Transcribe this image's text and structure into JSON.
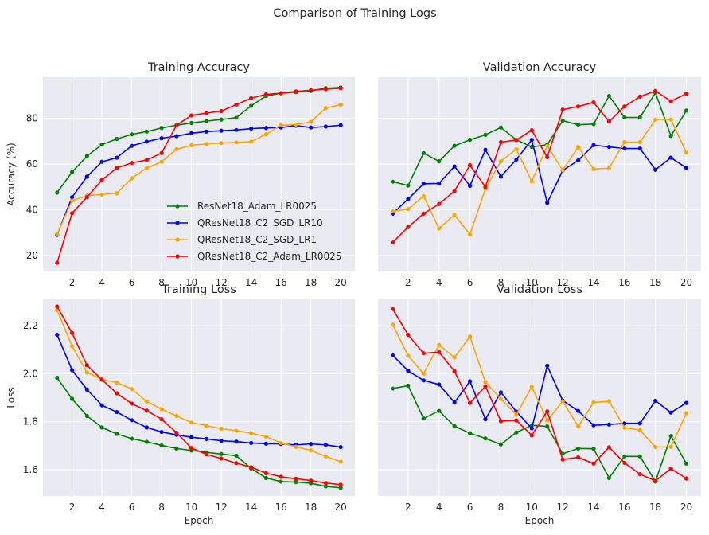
{
  "suptitle": "Comparison of Training Logs",
  "colors": {
    "background": "#eaeaf2",
    "grid": "#ffffff",
    "series": [
      "#008000",
      "#0000ff",
      "#ffa500",
      "#ff0000"
    ]
  },
  "legend": {
    "location": "lower-right of Training Accuracy",
    "entries": [
      "ResNet18_Adam_LR0025",
      "QResNet18_C2_SGD_LR10",
      "QResNet18_C2_SGD_LR1",
      "QResNet18_C2_Adam_LR0025"
    ]
  },
  "chart_data": [
    {
      "type": "line",
      "title": "Training Accuracy",
      "xlabel": "",
      "ylabel": "Accuracy (%)",
      "x": [
        1,
        2,
        3,
        4,
        5,
        6,
        7,
        8,
        9,
        10,
        11,
        12,
        13,
        14,
        15,
        16,
        17,
        18,
        19,
        20
      ],
      "xticks": [
        2,
        4,
        6,
        8,
        10,
        12,
        14,
        16,
        18,
        20
      ],
      "xlim": [
        0.05,
        20.95
      ],
      "yticks": [
        20,
        40,
        60,
        80
      ],
      "ylim": [
        13,
        98
      ],
      "series": [
        {
          "name": "ResNet18_Adam_LR0025",
          "values": [
            47.5,
            56.5,
            63.5,
            68.5,
            71,
            73,
            74.2,
            75.8,
            77,
            78,
            78.8,
            79.5,
            80.3,
            85.5,
            89.8,
            91,
            91.5,
            92,
            93.2,
            93.5
          ]
        },
        {
          "name": "QResNet18_C2_SGD_LR10",
          "values": [
            29,
            45.5,
            54.5,
            61,
            62.8,
            68,
            69.8,
            71.3,
            72.2,
            73.5,
            74.2,
            74.6,
            74.9,
            75.5,
            75.8,
            76,
            76.8,
            76,
            76.4,
            77
          ]
        },
        {
          "name": "QResNet18_C2_SGD_LR1",
          "values": [
            29.3,
            44,
            46.2,
            46.7,
            47.2,
            53.8,
            58.3,
            61,
            66.5,
            68.2,
            68.8,
            69.2,
            69.5,
            69.8,
            73,
            77,
            77.3,
            78.5,
            84.5,
            86
          ]
        },
        {
          "name": "QResNet18_C2_Adam_LR0025",
          "values": [
            16.8,
            38.5,
            45.5,
            53,
            58.3,
            60.5,
            61.8,
            64.8,
            77,
            81.3,
            82.3,
            83.2,
            86,
            88.8,
            90.5,
            91,
            91.8,
            92.3,
            92.8,
            93.2
          ]
        }
      ]
    },
    {
      "type": "line",
      "title": "Validation Accuracy",
      "xlabel": "",
      "ylabel": "",
      "x": [
        1,
        2,
        3,
        4,
        5,
        6,
        7,
        8,
        9,
        10,
        11,
        12,
        13,
        14,
        15,
        16,
        17,
        18,
        19,
        20
      ],
      "xticks": [
        2,
        4,
        6,
        8,
        10,
        12,
        14,
        16,
        18,
        20
      ],
      "xlim": [
        0.05,
        20.95
      ],
      "yticks": [
        20,
        40,
        60,
        80
      ],
      "ylim": [
        13,
        98
      ],
      "series": [
        {
          "name": "ResNet18_Adam_LR0025",
          "values": [
            52.3,
            50.6,
            64.8,
            61.2,
            68,
            70.6,
            72.8,
            76,
            70.6,
            67.5,
            68.5,
            79,
            77.2,
            77.5,
            89.8,
            80.4,
            80.4,
            91.2,
            72.3,
            83.4
          ]
        },
        {
          "name": "QResNet18_C2_SGD_LR10",
          "values": [
            38.3,
            44.7,
            51.4,
            51.5,
            59,
            50.5,
            66.2,
            54.5,
            62,
            70.6,
            43,
            57.2,
            61.6,
            68.3,
            67.5,
            66.8,
            66.8,
            57.5,
            62.8,
            58.3
          ]
        },
        {
          "name": "QResNet18_C2_SGD_LR1",
          "values": [
            39.3,
            40.3,
            46,
            31.8,
            37.8,
            29.2,
            49.2,
            61.3,
            66.5,
            52.4,
            68,
            57.3,
            67.5,
            57.8,
            58.2,
            69.6,
            69.6,
            79.5,
            79.5,
            65
          ]
        },
        {
          "name": "QResNet18_C2_Adam_LR0025",
          "values": [
            25.7,
            32.4,
            38.3,
            42.5,
            48.2,
            59.5,
            50,
            69.6,
            70.5,
            74.8,
            63,
            83.8,
            85.2,
            87,
            78.6,
            85.2,
            89.5,
            92,
            87.5,
            90.8
          ]
        }
      ]
    },
    {
      "type": "line",
      "title": "Training Loss",
      "xlabel": "Epoch",
      "ylabel": "Loss",
      "x": [
        1,
        2,
        3,
        4,
        5,
        6,
        7,
        8,
        9,
        10,
        11,
        12,
        13,
        14,
        15,
        16,
        17,
        18,
        19,
        20
      ],
      "xticks": [
        2,
        4,
        6,
        8,
        10,
        12,
        14,
        16,
        18,
        20
      ],
      "xlim": [
        0.05,
        20.95
      ],
      "yticks": [
        1.6,
        1.8,
        2.0,
        2.2
      ],
      "ylim": [
        1.49,
        2.31
      ],
      "series": [
        {
          "name": "ResNet18_Adam_LR0025",
          "values": [
            1.983,
            1.895,
            1.824,
            1.776,
            1.749,
            1.729,
            1.716,
            1.701,
            1.688,
            1.68,
            1.672,
            1.665,
            1.658,
            1.605,
            1.565,
            1.55,
            1.548,
            1.543,
            1.53,
            1.524
          ]
        },
        {
          "name": "QResNet18_C2_SGD_LR10",
          "values": [
            2.162,
            2.015,
            1.934,
            1.868,
            1.84,
            1.806,
            1.776,
            1.757,
            1.745,
            1.735,
            1.728,
            1.72,
            1.717,
            1.711,
            1.708,
            1.707,
            1.703,
            1.707,
            1.703,
            1.694
          ]
        },
        {
          "name": "QResNet18_C2_SGD_LR1",
          "values": [
            2.265,
            2.115,
            2.005,
            1.976,
            1.963,
            1.936,
            1.884,
            1.852,
            1.824,
            1.796,
            1.783,
            1.771,
            1.762,
            1.752,
            1.738,
            1.711,
            1.695,
            1.68,
            1.655,
            1.633
          ]
        },
        {
          "name": "QResNet18_C2_Adam_LR0025",
          "values": [
            2.28,
            2.17,
            2.035,
            1.975,
            1.918,
            1.875,
            1.846,
            1.81,
            1.754,
            1.69,
            1.664,
            1.646,
            1.627,
            1.61,
            1.585,
            1.57,
            1.562,
            1.554,
            1.544,
            1.537
          ]
        }
      ]
    },
    {
      "type": "line",
      "title": "Validation Loss",
      "xlabel": "Epoch",
      "ylabel": "",
      "x": [
        1,
        2,
        3,
        4,
        5,
        6,
        7,
        8,
        9,
        10,
        11,
        12,
        13,
        14,
        15,
        16,
        17,
        18,
        19,
        20
      ],
      "xticks": [
        2,
        4,
        6,
        8,
        10,
        12,
        14,
        16,
        18,
        20
      ],
      "xlim": [
        0.05,
        20.95
      ],
      "yticks": [
        1.6,
        1.8,
        2.0,
        2.2
      ],
      "ylim": [
        1.49,
        2.31
      ],
      "series": [
        {
          "name": "ResNet18_Adam_LR0025",
          "values": [
            1.938,
            1.95,
            1.813,
            1.845,
            1.781,
            1.752,
            1.73,
            1.705,
            1.755,
            1.785,
            1.78,
            1.666,
            1.688,
            1.687,
            1.565,
            1.655,
            1.655,
            1.55,
            1.74,
            1.625
          ]
        },
        {
          "name": "QResNet18_C2_SGD_LR10",
          "values": [
            2.077,
            2.012,
            1.972,
            1.955,
            1.88,
            1.968,
            1.81,
            1.922,
            1.842,
            1.772,
            2.033,
            1.888,
            1.845,
            1.785,
            1.788,
            1.793,
            1.793,
            1.887,
            1.838,
            1.878
          ]
        },
        {
          "name": "QResNet18_C2_SGD_LR1",
          "values": [
            2.205,
            2.075,
            2.0,
            2.12,
            2.068,
            2.155,
            1.965,
            1.895,
            1.83,
            1.945,
            1.805,
            1.885,
            1.78,
            1.88,
            1.885,
            1.775,
            1.765,
            1.694,
            1.695,
            1.835
          ]
        },
        {
          "name": "QResNet18_C2_Adam_LR0025",
          "values": [
            2.27,
            2.162,
            2.085,
            2.09,
            2.01,
            1.878,
            1.947,
            1.802,
            1.805,
            1.743,
            1.843,
            1.642,
            1.651,
            1.625,
            1.693,
            1.628,
            1.581,
            1.553,
            1.604,
            1.563
          ]
        }
      ]
    }
  ]
}
